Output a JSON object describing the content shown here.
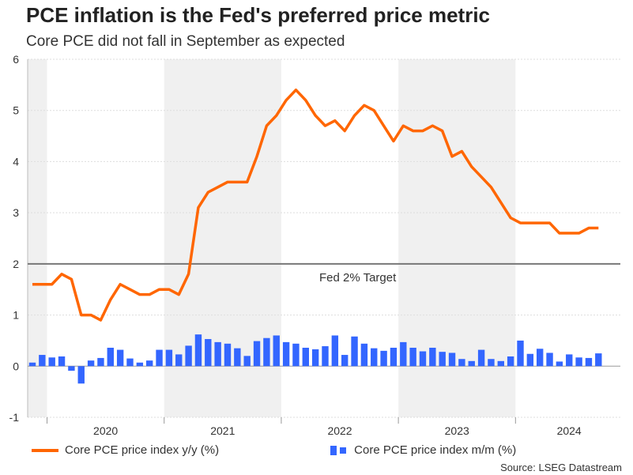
{
  "title": "PCE inflation is the Fed's preferred price metric",
  "subtitle": "Core PCE did not fall in September as expected",
  "source": "Source: LSEG Datastream",
  "chart_data": {
    "type": "line+bar",
    "x_start": "2019-11",
    "x_end": "2024-09",
    "x_tick_labels": [
      "2020",
      "2021",
      "2022",
      "2023",
      "2024"
    ],
    "ylim": [
      -1,
      6
    ],
    "y_ticks": [
      "-1",
      "0",
      "1",
      "2",
      "3",
      "4",
      "5",
      "6"
    ],
    "reference_line": {
      "value": 2,
      "label": "Fed 2% Target"
    },
    "shaded_years": [
      "2019",
      "2021",
      "2023"
    ],
    "legend_position": "bottom",
    "series": [
      {
        "name": "Core PCE price index y/y (%)",
        "type": "line",
        "color": "#ff6600",
        "values": [
          1.6,
          1.6,
          1.6,
          1.8,
          1.7,
          1.0,
          1.0,
          0.9,
          1.3,
          1.6,
          1.5,
          1.4,
          1.4,
          1.5,
          1.5,
          1.4,
          1.8,
          3.1,
          3.4,
          3.5,
          3.6,
          3.6,
          3.6,
          4.1,
          4.7,
          4.9,
          5.2,
          5.4,
          5.2,
          4.9,
          4.7,
          4.8,
          4.6,
          4.9,
          5.1,
          5.0,
          4.7,
          4.4,
          4.7,
          4.6,
          4.6,
          4.7,
          4.6,
          4.1,
          4.2,
          3.9,
          3.7,
          3.5,
          3.2,
          2.9,
          2.8,
          2.8,
          2.8,
          2.8,
          2.6,
          2.6,
          2.6,
          2.7,
          2.7
        ]
      },
      {
        "name": "Core PCE price index m/m (%)",
        "type": "bar",
        "color": "#3366ff",
        "values": [
          0.07,
          0.22,
          0.17,
          0.19,
          -0.09,
          -0.34,
          0.11,
          0.16,
          0.36,
          0.32,
          0.15,
          0.07,
          0.11,
          0.32,
          0.32,
          0.23,
          0.4,
          0.62,
          0.53,
          0.47,
          0.44,
          0.35,
          0.2,
          0.49,
          0.55,
          0.6,
          0.47,
          0.44,
          0.36,
          0.33,
          0.39,
          0.6,
          0.22,
          0.58,
          0.44,
          0.35,
          0.3,
          0.36,
          0.47,
          0.36,
          0.29,
          0.36,
          0.28,
          0.26,
          0.14,
          0.1,
          0.32,
          0.14,
          0.1,
          0.19,
          0.5,
          0.24,
          0.34,
          0.26,
          0.09,
          0.23,
          0.17,
          0.16,
          0.25
        ]
      }
    ]
  }
}
